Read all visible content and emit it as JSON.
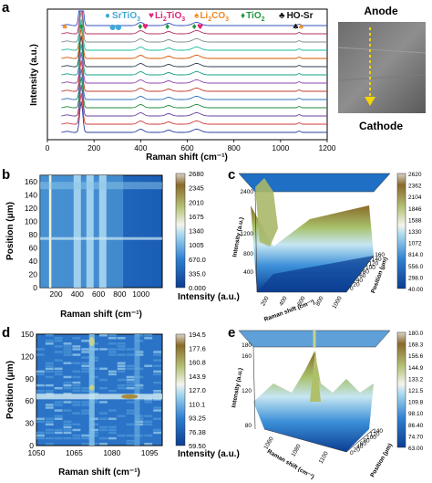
{
  "panels": {
    "a": "a",
    "b": "b",
    "c": "c",
    "d": "d",
    "e": "e"
  },
  "photo": {
    "top_label": "Anode",
    "bottom_label": "Cathode"
  },
  "legend_a": [
    {
      "marker": "●",
      "text": "SrTiO",
      "sub": "3",
      "color": "#3fa9d6"
    },
    {
      "marker": "♥",
      "text": "Li",
      "sub": "2",
      "text2": "TiO",
      "sub2": "3",
      "color": "#e0247a"
    },
    {
      "marker": "♠",
      "text": "Li",
      "sub": "2",
      "text2": "CO",
      "sub2": "3",
      "color": "#f08a24"
    },
    {
      "marker": "♦",
      "text": "TiO",
      "sub": "2",
      "color": "#1e9a3c"
    },
    {
      "marker": "♣",
      "text": "HO-Sr",
      "color": "#111111"
    }
  ],
  "chart_data": [
    {
      "id": "a",
      "type": "line",
      "xlabel": "Raman shift (cm⁻¹)",
      "ylabel": "Intensity (a.u.)",
      "xlim": [
        0,
        1200
      ],
      "xticks": [
        0,
        200,
        400,
        600,
        800,
        1000,
        1200
      ],
      "series_count": 14,
      "peaks": [
        145,
        400,
        520,
        640
      ],
      "markers": [
        {
          "x": 75,
          "symbol": "♠",
          "color": "#f08a24"
        },
        {
          "x": 145,
          "symbol": "♦",
          "color": "#1e9a3c"
        },
        {
          "x": 280,
          "symbol": "●",
          "color": "#3fa9d6"
        },
        {
          "x": 305,
          "symbol": "●",
          "color": "#3fa9d6"
        },
        {
          "x": 398,
          "symbol": "♦",
          "color": "#1e9a3c"
        },
        {
          "x": 420,
          "symbol": "♥",
          "color": "#e0247a"
        },
        {
          "x": 515,
          "symbol": "♦",
          "color": "#1e9a3c"
        },
        {
          "x": 630,
          "symbol": "♦",
          "color": "#1e9a3c"
        },
        {
          "x": 655,
          "symbol": "♥",
          "color": "#e0247a"
        },
        {
          "x": 1065,
          "symbol": "♣",
          "color": "#111111"
        },
        {
          "x": 1088,
          "symbol": "♠",
          "color": "#f08a24"
        }
      ]
    },
    {
      "id": "b",
      "type": "heatmap",
      "xlabel": "Raman shift (cm⁻¹)",
      "ylabel": "Position (μm)",
      "xlim": [
        50,
        1200
      ],
      "xticks": [
        200,
        400,
        600,
        800,
        1000
      ],
      "ylim": [
        0,
        170
      ],
      "yticks": [
        0,
        20,
        40,
        60,
        80,
        100,
        120,
        140,
        160
      ],
      "colorbar_label": "Intensity (a.u.)",
      "colorbar_ticks": [
        "0.000",
        "335.0",
        "670.0",
        "1005",
        "1340",
        "1675",
        "2010",
        "2345",
        "2680"
      ],
      "bands": [
        145,
        400,
        520,
        640
      ]
    },
    {
      "id": "c",
      "type": "surface",
      "xlabel": "Raman shift (cm⁻¹)",
      "ylabel": "Position (μm)",
      "zlabel": "Intensity (a.u.)",
      "zticks": [
        400,
        800,
        1200,
        2400
      ],
      "xticks": [
        200,
        400,
        600,
        800,
        1000
      ],
      "yticks": [
        0,
        20,
        40,
        60,
        80,
        100,
        120,
        140,
        160
      ],
      "colorbar_ticks": [
        "40.00",
        "298.0",
        "556.0",
        "814.0",
        "1072",
        "1330",
        "1588",
        "1846",
        "2104",
        "2362",
        "2620"
      ]
    },
    {
      "id": "d",
      "type": "heatmap",
      "xlabel": "Raman shift (cm⁻¹)",
      "ylabel": "Position (μm)",
      "xlim": [
        1050,
        1100
      ],
      "xticks": [
        1050,
        1065,
        1080,
        1095
      ],
      "ylim": [
        0,
        150
      ],
      "yticks": [
        0,
        30,
        60,
        90,
        120,
        150
      ],
      "colorbar_label": "Intensity (a.u.)",
      "colorbar_ticks": [
        "59.50",
        "76.38",
        "93.25",
        "110.1",
        "127.0",
        "143.9",
        "160.8",
        "177.6",
        "194.5"
      ]
    },
    {
      "id": "e",
      "type": "surface",
      "xlabel": "Raman shift (cm⁻¹)",
      "ylabel": "Position (μm)",
      "zlabel": "Intensity (a.u.)",
      "zticks": [
        80,
        120,
        160,
        180
      ],
      "xticks": [
        1060,
        1080,
        1100
      ],
      "yticks": [
        0,
        20,
        40,
        60,
        80,
        100,
        120,
        140
      ],
      "colorbar_ticks": [
        "63.00",
        "74.70",
        "86.40",
        "98.10",
        "109.8",
        "121.5",
        "133.2",
        "144.9",
        "156.6",
        "168.3",
        "180.0"
      ]
    }
  ]
}
